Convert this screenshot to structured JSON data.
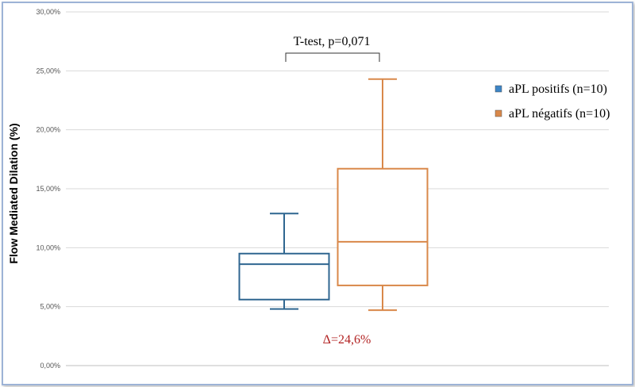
{
  "chart_data": {
    "type": "box",
    "ylabel": "Flow Mediated Dilation (%)",
    "ylim": [
      0,
      30
    ],
    "yticks": [
      "0,00%",
      "5,00%",
      "10,00%",
      "15,00%",
      "20,00%",
      "25,00%",
      "30,00%"
    ],
    "ytick_values": [
      0,
      5,
      10,
      15,
      20,
      25,
      30
    ],
    "grid": true,
    "legend_position": "right",
    "series": [
      {
        "name": "aPL positifs (n=10)",
        "color": "#2f6690",
        "legend_color": "#3d85c6",
        "min": 4.8,
        "q1": 5.6,
        "median": 8.6,
        "q3": 9.5,
        "max": 12.9
      },
      {
        "name": "aPL négatifs (n=10)",
        "color": "#d9884a",
        "legend_color": "#d9884a",
        "min": 4.7,
        "q1": 6.8,
        "median": 10.5,
        "q3": 16.7,
        "max": 24.3
      }
    ],
    "annotations": {
      "test": "T-test, p=0,071",
      "delta": "Δ=24,6%",
      "delta_color": "#b22222"
    }
  }
}
